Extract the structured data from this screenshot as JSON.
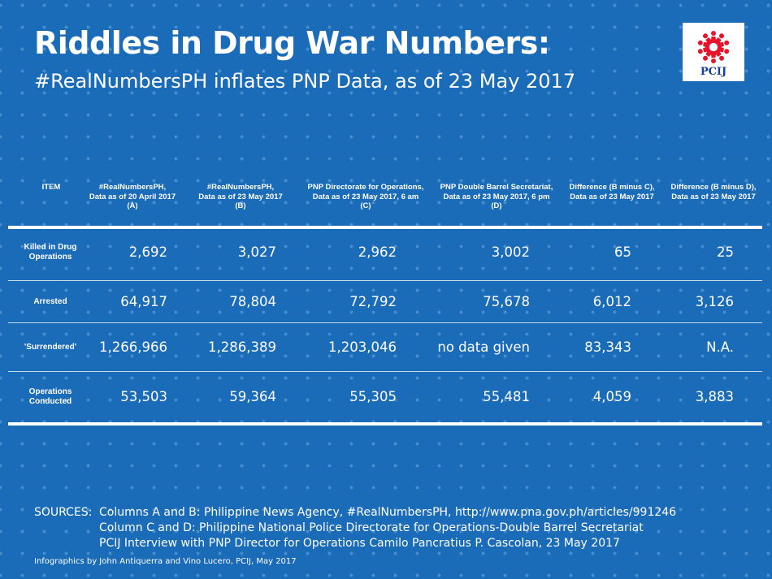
{
  "title": "Riddles in Drug War Numbers:",
  "subtitle": "#RealNumbersPH inflates PNP Data, as of 23 May 2017",
  "logo": {
    "text": "PCIJ",
    "color": "#e8142c"
  },
  "colors": {
    "background": "#1a6bb8",
    "text": "#ffffff"
  },
  "chart_data": {
    "type": "table",
    "columns": [
      "ITEM",
      "#RealNumbersPH,\nData as of 20 April 2017\n(A)",
      "#RealNumbersPH,\nData as of 23 May 2017\n(B)",
      "PNP Directorate for Operations,\nData as of 23 May 2017, 6 am\n(C)",
      "PNP Double Barrel Secretariat,\nData as of 23 May 2017, 6 pm\n(D)",
      "Difference (B minus C),\nData as of 23 May 2017",
      "Difference (B minus D),\nData as of 23 May 2017"
    ],
    "rows": [
      {
        "label": "Killed in Drug\nOperations",
        "values": [
          "2,692",
          "3,027",
          "2,962",
          "3,002",
          "65",
          "25"
        ]
      },
      {
        "label": "Arrested",
        "values": [
          "64,917",
          "78,804",
          "72,792",
          "75,678",
          "6,012",
          "3,126"
        ]
      },
      {
        "label": "'Surrendered'",
        "values": [
          "1,266,966",
          "1,286,389",
          "1,203,046",
          "no data given",
          "83,343",
          "N.A."
        ]
      },
      {
        "label": "Operations\nConducted",
        "values": [
          "53,503",
          "59,364",
          "55,305",
          "55,481",
          "4,059",
          "3,883"
        ]
      }
    ]
  },
  "sources": {
    "label": "SOURCES:",
    "lines": [
      "Columns A and B: Philippine News Agency, #RealNumbersPH, http://www.pna.gov.ph/articles/991246",
      "Column C and D: Philippine National Police Directorate for Operations-Double Barrel Secretariat",
      "PCIJ Interview with PNP Director for Operations Camilo Pancratius P. Cascolan, 23 May 2017"
    ]
  },
  "credit": "Infographics by John Antiquerra and Vino Lucero, PCIJ, May 2017"
}
